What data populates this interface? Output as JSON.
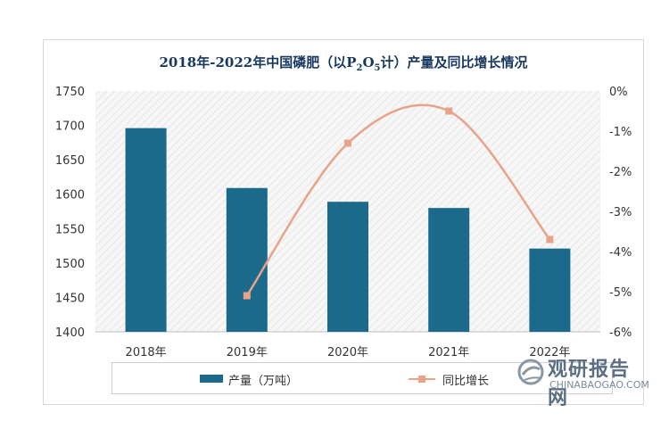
{
  "chart_data": {
    "type": "bar+line",
    "title": "2018年-2022年中国磷肥（以P₂O₅计）产量及同比增长情况",
    "title_parts": {
      "pre": "2018年-2022年中国磷肥（以P",
      "sub1": "2",
      "mid": "O",
      "sub2": "5",
      "post": "计）产量及同比增长情况"
    },
    "categories": [
      "2018年",
      "2019年",
      "2020年",
      "2021年",
      "2022年"
    ],
    "series": [
      {
        "name": "产量（万吨）",
        "type": "bar",
        "axis": "left",
        "values": [
          1696,
          1609,
          1589,
          1580,
          1521
        ],
        "color": "#1b6a8c"
      },
      {
        "name": "同比增长",
        "type": "line",
        "axis": "right",
        "values": [
          null,
          -5.1,
          -1.3,
          -0.5,
          -3.7
        ],
        "color": "#e8a388"
      }
    ],
    "y_left": {
      "min": 1400,
      "max": 1750,
      "ticks": [
        "1400",
        "1450",
        "1500",
        "1550",
        "1600",
        "1650",
        "1700",
        "1750"
      ]
    },
    "y_right": {
      "min": -6,
      "max": 0,
      "ticks": [
        "-6%",
        "-5%",
        "-4%",
        "-3%",
        "-2%",
        "-1%",
        "0%"
      ]
    },
    "legend_position": "bottom",
    "grid": false
  },
  "watermark": {
    "name": "观研报告网",
    "url": "CHINABAOGAO.COM"
  }
}
